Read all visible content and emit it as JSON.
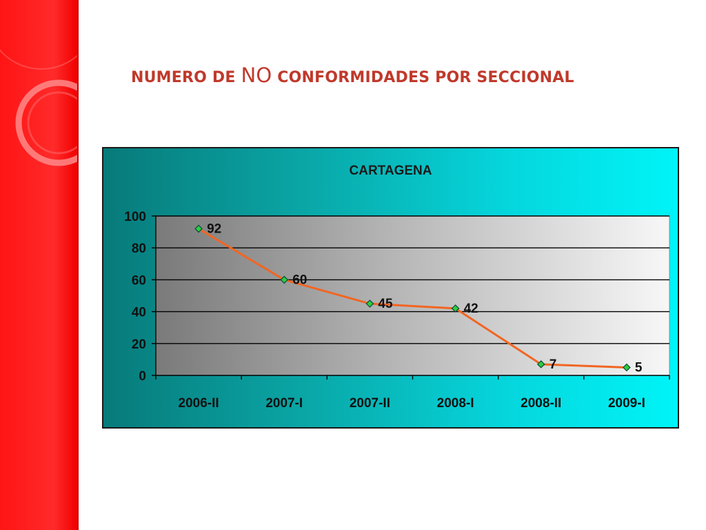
{
  "slide": {
    "title_part1": "NUMERO DE ",
    "title_part2": "NO",
    "title_part3": " CONFORMIDADES POR SECCIONAL"
  },
  "colors": {
    "side_band": "#ff1a1a",
    "title": "#c0392b",
    "line": "#f26522",
    "marker": "#2ecc40"
  },
  "chart_data": {
    "type": "line",
    "title": "CARTAGENA",
    "categories": [
      "2006-II",
      "2007-I",
      "2007-II",
      "2008-I",
      "2008-II",
      "2009-I"
    ],
    "series": [
      {
        "values": [
          92,
          60,
          45,
          42,
          7,
          5
        ]
      }
    ],
    "data_labels": [
      "92",
      "60",
      "45",
      "42",
      "7",
      "5"
    ],
    "ylim": [
      0,
      100
    ],
    "yticks": [
      0,
      20,
      40,
      60,
      80,
      100
    ],
    "grid": true,
    "legend": "none",
    "xlabel": "",
    "ylabel": ""
  }
}
